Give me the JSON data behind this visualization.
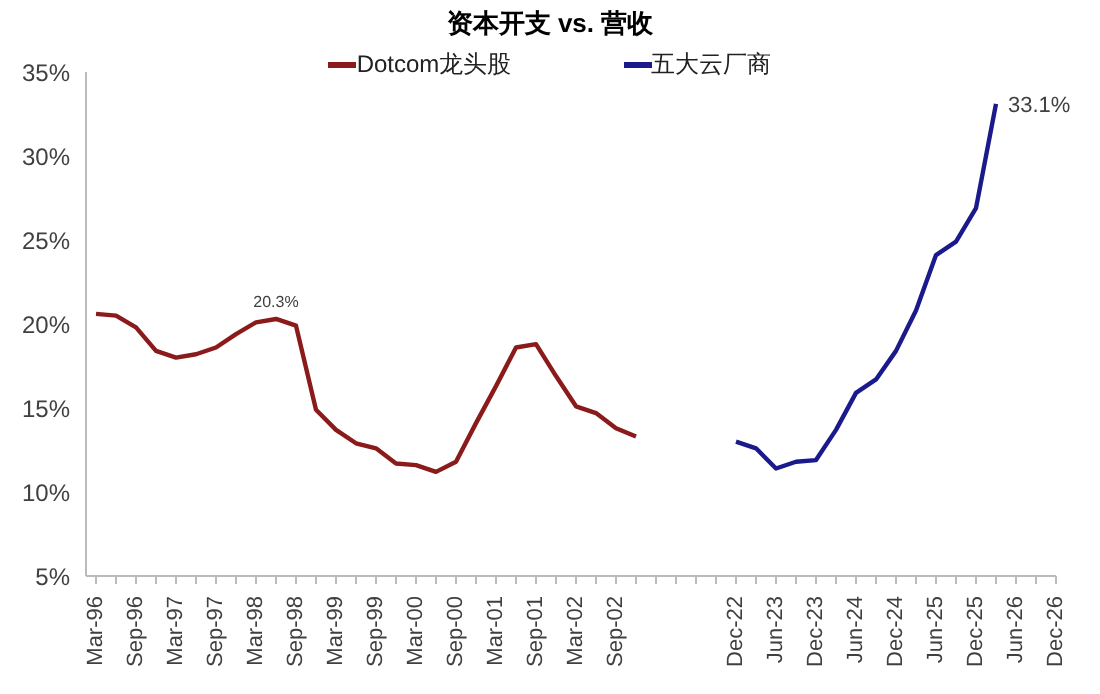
{
  "chart_data": {
    "type": "line",
    "title": "资本开支 vs. 营收",
    "categories": [
      "Mar-96",
      null,
      "Sep-96",
      null,
      "Mar-97",
      null,
      "Sep-97",
      null,
      "Mar-98",
      null,
      "Sep-98",
      null,
      "Mar-99",
      null,
      "Sep-99",
      null,
      "Mar-00",
      null,
      "Sep-00",
      null,
      "Mar-01",
      null,
      "Sep-01",
      null,
      "Mar-02",
      null,
      "Sep-02",
      null,
      null,
      null,
      null,
      null,
      "Dec-22",
      null,
      "Jun-23",
      null,
      "Dec-23",
      null,
      "Jun-24",
      null,
      "Dec-24",
      null,
      "Jun-25",
      null,
      "Dec-25",
      null,
      "Jun-26",
      null,
      "Dec-26"
    ],
    "series": [
      {
        "name": "Dotcom龙头股",
        "color": "#8b1a1a",
        "values": [
          20.6,
          20.5,
          19.8,
          18.4,
          18.0,
          18.2,
          18.6,
          19.4,
          20.1,
          20.3,
          19.9,
          14.9,
          13.7,
          12.9,
          12.6,
          11.7,
          11.6,
          11.2,
          11.8,
          14.1,
          16.3,
          18.6,
          18.8,
          16.9,
          15.1,
          14.7,
          13.8,
          13.3,
          null,
          null,
          null,
          null,
          null,
          null,
          null,
          null,
          null,
          null,
          null,
          null,
          null,
          null,
          null,
          null,
          null,
          null,
          null,
          null,
          null
        ],
        "value_labels": [
          null,
          null,
          null,
          null,
          null,
          null,
          null,
          null,
          null,
          "20.3%",
          null,
          null,
          null,
          null,
          null,
          null,
          null,
          null,
          null,
          null,
          null,
          null,
          null,
          null,
          null,
          null,
          null,
          null,
          null,
          null,
          null,
          null,
          null,
          null,
          null,
          null,
          null,
          null,
          null,
          null,
          null,
          null,
          null,
          null,
          null,
          null,
          null,
          null,
          null
        ]
      },
      {
        "name": "五大云厂商",
        "color": "#1a1a8c",
        "values": [
          null,
          null,
          null,
          null,
          null,
          null,
          null,
          null,
          null,
          null,
          null,
          null,
          null,
          null,
          null,
          null,
          null,
          null,
          null,
          null,
          null,
          null,
          null,
          null,
          null,
          null,
          null,
          null,
          null,
          null,
          null,
          null,
          13.0,
          12.6,
          11.4,
          11.8,
          11.9,
          13.7,
          15.9,
          16.7,
          18.4,
          20.8,
          24.1,
          24.9,
          26.9,
          33.1,
          null,
          null,
          null
        ],
        "value_labels": [
          null,
          null,
          null,
          null,
          null,
          null,
          null,
          null,
          null,
          null,
          null,
          null,
          null,
          null,
          null,
          null,
          null,
          null,
          null,
          null,
          null,
          null,
          null,
          null,
          null,
          null,
          null,
          null,
          null,
          null,
          null,
          null,
          null,
          null,
          null,
          null,
          null,
          null,
          null,
          null,
          null,
          null,
          null,
          null,
          null,
          "33.1%",
          null,
          null,
          null
        ]
      }
    ],
    "ylim": [
      5,
      35
    ],
    "yticks": [
      {
        "value": 5,
        "label": "5%"
      },
      {
        "value": 10,
        "label": "10%"
      },
      {
        "value": 15,
        "label": "15%"
      },
      {
        "value": 20,
        "label": "20%"
      },
      {
        "value": 25,
        "label": "25%"
      },
      {
        "value": 30,
        "label": "30%"
      },
      {
        "value": 35,
        "label": "35%"
      }
    ],
    "legend": "top"
  }
}
